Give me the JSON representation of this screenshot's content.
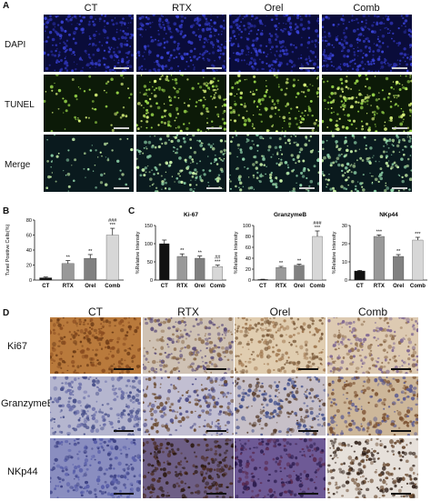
{
  "panelA": {
    "letter": "A",
    "columns": [
      "CT",
      "RTX",
      "Orel",
      "Comb"
    ],
    "rows": [
      "DAPI",
      "TUNEL",
      "Merge"
    ]
  },
  "panelB": {
    "letter": "B"
  },
  "panelC": {
    "letter": "C"
  },
  "panelD": {
    "letter": "D",
    "columns": [
      "CT",
      "RTX",
      "Orel",
      "Comb"
    ],
    "rows": [
      "Ki67",
      "GranzymeB",
      "NKp44"
    ]
  },
  "chart_data": [
    {
      "id": "B",
      "type": "bar",
      "title": "",
      "xlabel": "",
      "ylabel": "Tunel Positive Cells(%)",
      "categories": [
        "CT",
        "RTX",
        "Orel",
        "Comb"
      ],
      "values": [
        3,
        22,
        29,
        60
      ],
      "errors": [
        1,
        4,
        5,
        9
      ],
      "ylim": [
        0,
        80
      ],
      "yticks": [
        0,
        20,
        40,
        60,
        80
      ],
      "colors": [
        "#111111",
        "#999999",
        "#808080",
        "#d7d7d7"
      ],
      "annotations": [
        {
          "category": "RTX",
          "lines": [
            "**"
          ]
        },
        {
          "category": "Orel",
          "lines": [
            "**"
          ]
        },
        {
          "category": "Comb",
          "lines": [
            "###",
            "***"
          ]
        }
      ]
    },
    {
      "id": "C1",
      "type": "bar",
      "title": "Ki-67",
      "xlabel": "",
      "ylabel": "%Relative Intensity",
      "categories": [
        "CT",
        "RTX",
        "Orel",
        "Comb"
      ],
      "values": [
        100,
        65,
        60,
        37
      ],
      "errors": [
        10,
        7,
        6,
        4
      ],
      "ylim": [
        0,
        150
      ],
      "yticks": [
        0,
        50,
        100,
        150
      ],
      "colors": [
        "#111111",
        "#999999",
        "#808080",
        "#d7d7d7"
      ],
      "annotations": [
        {
          "category": "RTX",
          "lines": [
            "**"
          ]
        },
        {
          "category": "Orel",
          "lines": [
            "**"
          ]
        },
        {
          "category": "Comb",
          "lines": [
            "##",
            "***"
          ]
        }
      ]
    },
    {
      "id": "C2",
      "type": "bar",
      "title": "GranzymeB",
      "xlabel": "",
      "ylabel": "%Relative Intensity",
      "categories": [
        "CT",
        "RTX",
        "Orel",
        "Comb"
      ],
      "values": [
        1,
        23,
        27,
        80
      ],
      "errors": [
        0.5,
        2,
        2,
        10
      ],
      "ylim": [
        0,
        100
      ],
      "yticks": [
        0,
        20,
        40,
        60,
        80,
        100
      ],
      "colors": [
        "#111111",
        "#999999",
        "#808080",
        "#d7d7d7"
      ],
      "annotations": [
        {
          "category": "RTX",
          "lines": [
            "**"
          ]
        },
        {
          "category": "Orel",
          "lines": [
            "**"
          ]
        },
        {
          "category": "Comb",
          "lines": [
            "###",
            "***"
          ]
        }
      ]
    },
    {
      "id": "C3",
      "type": "bar",
      "title": "NKp44",
      "xlabel": "",
      "ylabel": "%Relative Intensity",
      "categories": [
        "CT",
        "RTX",
        "Orel",
        "Comb"
      ],
      "values": [
        5,
        24,
        13,
        22
      ],
      "errors": [
        0.3,
        0.8,
        1,
        1.5
      ],
      "ylim": [
        0,
        30
      ],
      "yticks": [
        0,
        10,
        20,
        30
      ],
      "colors": [
        "#111111",
        "#999999",
        "#808080",
        "#d7d7d7"
      ],
      "annotations": [
        {
          "category": "RTX",
          "lines": [
            "***"
          ]
        },
        {
          "category": "Orel",
          "lines": [
            "**"
          ]
        },
        {
          "category": "Comb",
          "lines": [
            "***"
          ]
        }
      ]
    }
  ]
}
